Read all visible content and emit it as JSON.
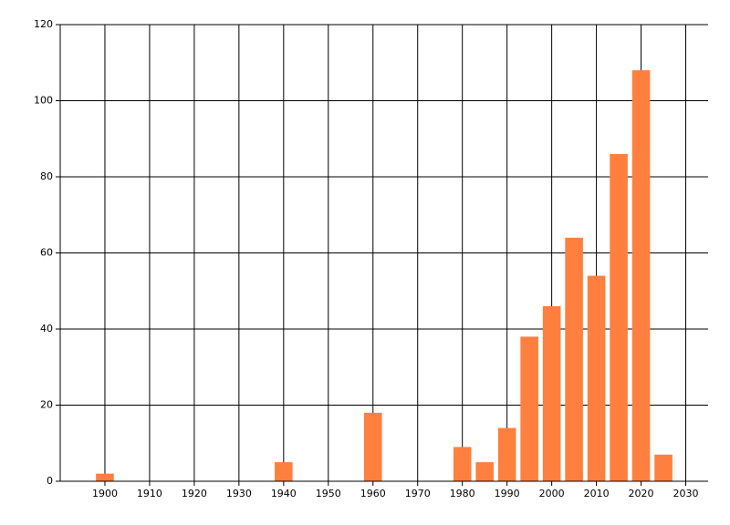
{
  "chart_data": {
    "type": "bar",
    "x": [
      1900,
      1940,
      1960,
      1980,
      1985,
      1990,
      1995,
      2000,
      2005,
      2010,
      2015,
      2020,
      2025
    ],
    "values": [
      2,
      5,
      18,
      9,
      5,
      14,
      38,
      46,
      64,
      54,
      86,
      108,
      7
    ],
    "color": "#ff7f3f",
    "xlim": [
      1890,
      2035
    ],
    "xticks": [
      1900,
      1910,
      1920,
      1930,
      1940,
      1950,
      1960,
      1970,
      1980,
      1990,
      2000,
      2010,
      2020,
      2030
    ],
    "ylim": [
      0,
      120
    ],
    "yticks": [
      0,
      20,
      40,
      60,
      80,
      100,
      120
    ],
    "grid": true
  }
}
